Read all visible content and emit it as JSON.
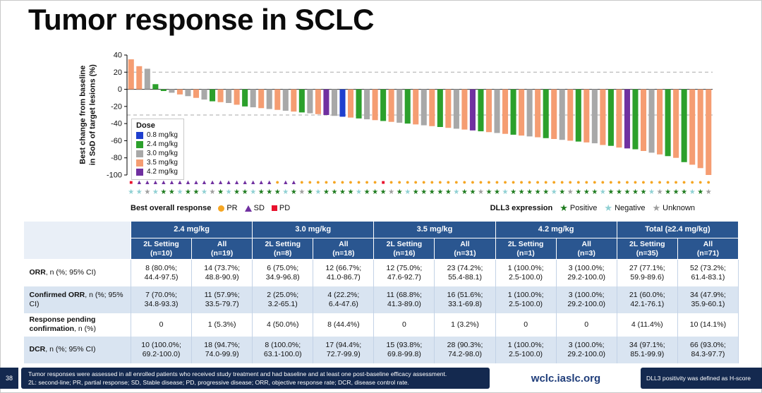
{
  "title": "Tumor response in SCLC",
  "colors": {
    "table_header_bg": "#2A5690",
    "table_stripe": "#D9E4F1",
    "footer_bg": "#14294F",
    "site_link": "#1F3D7A"
  },
  "chart_data": {
    "type": "bar",
    "subtype": "waterfall",
    "title": "",
    "ylabel": "Best change from baseline\nin SoD of target lesions (%)",
    "ylim": [
      -100,
      40
    ],
    "yticks": [
      40,
      20,
      0,
      -20,
      -40,
      -60,
      -80,
      -100
    ],
    "reference_lines": [
      20,
      -30
    ],
    "dose_legend_title": "Dose",
    "doses": [
      {
        "label": "0.8 mg/kg",
        "key": "0.8",
        "color": "#1F3FCE"
      },
      {
        "label": "2.4 mg/kg",
        "key": "2.4",
        "color": "#2CA02C"
      },
      {
        "label": "3.0 mg/kg",
        "key": "3.0",
        "color": "#A8A8A8"
      },
      {
        "label": "3.5 mg/kg",
        "key": "3.5",
        "color": "#F59D72"
      },
      {
        "label": "4.2 mg/kg",
        "key": "4.2",
        "color": "#7030A0"
      }
    ],
    "response_legend_title": "Best overall response",
    "responses": [
      {
        "label": "PR",
        "glyph": "circle",
        "color": "#F5A623"
      },
      {
        "label": "SD",
        "glyph": "triangle",
        "color": "#7030A0"
      },
      {
        "label": "PD",
        "glyph": "square",
        "color": "#E8112D"
      }
    ],
    "dll3_legend_title": "DLL3 expression",
    "dll3": [
      {
        "label": "Positive",
        "glyph": "star",
        "color": "#1E7B1E"
      },
      {
        "label": "Negative",
        "glyph": "star",
        "color": "#8FD0D3"
      },
      {
        "label": "Unknown",
        "glyph": "star",
        "color": "#9E9E9E"
      }
    ],
    "values": [
      35,
      27,
      24,
      6,
      -2,
      -4,
      -6,
      -8,
      -10,
      -12,
      -14,
      -15,
      -16,
      -18,
      -20,
      -21,
      -22,
      -23,
      -24,
      -25,
      -26,
      -27,
      -28,
      -29,
      -30,
      -31,
      -32,
      -33,
      -34,
      -35,
      -36,
      -37,
      -38,
      -39,
      -40,
      -41,
      -42,
      -43,
      -44,
      -45,
      -46,
      -47,
      -48,
      -49,
      -50,
      -51,
      -52,
      -53,
      -54,
      -55,
      -56,
      -57,
      -58,
      -59,
      -60,
      -61,
      -62,
      -63,
      -65,
      -66,
      -68,
      -69,
      -70,
      -72,
      -74,
      -76,
      -78,
      -80,
      -85,
      -88,
      -92,
      -100
    ],
    "dose_per_bar": [
      "3.5",
      "3.5",
      "3.0",
      "2.4",
      "2.4",
      "3.0",
      "3.5",
      "3.0",
      "3.5",
      "3.0",
      "2.4",
      "3.5",
      "3.0",
      "3.5",
      "2.4",
      "3.0",
      "3.5",
      "3.0",
      "3.5",
      "3.0",
      "3.5",
      "2.4",
      "3.0",
      "3.5",
      "4.2",
      "3.0",
      "0.8",
      "3.5",
      "2.4",
      "3.0",
      "3.5",
      "2.4",
      "3.5",
      "3.0",
      "2.4",
      "3.5",
      "3.0",
      "3.5",
      "2.4",
      "3.5",
      "3.0",
      "3.5",
      "4.2",
      "2.4",
      "3.5",
      "3.0",
      "3.5",
      "2.4",
      "3.5",
      "3.0",
      "3.5",
      "2.4",
      "3.5",
      "3.0",
      "3.5",
      "2.4",
      "3.5",
      "3.0",
      "3.5",
      "2.4",
      "3.5",
      "4.2",
      "2.4",
      "3.5",
      "3.0",
      "3.5",
      "2.4",
      "3.5",
      "2.4",
      "3.5",
      "3.5",
      "3.5"
    ],
    "response_per_bar": [
      "PD",
      "SD",
      "SD",
      "SD",
      "SD",
      "SD",
      "SD",
      "SD",
      "SD",
      "SD",
      "SD",
      "SD",
      "SD",
      "SD",
      "SD",
      "SD",
      "SD",
      "SD",
      "PR",
      "SD",
      "SD",
      "PR",
      "PR",
      "PR",
      "PR",
      "PR",
      "PR",
      "PR",
      "PR",
      "PR",
      "PR",
      "PD",
      "PR",
      "PR",
      "PR",
      "PR",
      "PR",
      "PR",
      "PR",
      "PR",
      "PR",
      "PR",
      "PR",
      "PR",
      "PR",
      "PR",
      "PR",
      "PR",
      "PR",
      "PR",
      "PR",
      "PR",
      "PR",
      "PR",
      "PR",
      "PR",
      "PR",
      "PR",
      "PR",
      "PR",
      "PR",
      "PR",
      "PR",
      "PR",
      "PR",
      "PR",
      "PR",
      "PR",
      "PR",
      "PR",
      "PR",
      "PR"
    ],
    "dll3_per_bar": [
      "Negative",
      "Negative",
      "Unknown",
      "Negative",
      "Positive",
      "Positive",
      "Negative",
      "Positive",
      "Positive",
      "Negative",
      "Unknown",
      "Positive",
      "Negative",
      "Positive",
      "Positive",
      "Negative",
      "Positive",
      "Positive",
      "Positive",
      "Negative",
      "Positive",
      "Unknown",
      "Positive",
      "Negative",
      "Positive",
      "Positive",
      "Positive",
      "Positive",
      "Negative",
      "Positive",
      "Positive",
      "Positive",
      "Unknown",
      "Positive",
      "Negative",
      "Positive",
      "Positive",
      "Positive",
      "Positive",
      "Positive",
      "Negative",
      "Positive",
      "Positive",
      "Unknown",
      "Positive",
      "Positive",
      "Negative",
      "Positive",
      "Positive",
      "Positive",
      "Positive",
      "Positive",
      "Negative",
      "Positive",
      "Unknown",
      "Positive",
      "Positive",
      "Positive",
      "Negative",
      "Positive",
      "Positive",
      "Positive",
      "Positive",
      "Positive",
      "Negative",
      "Unknown",
      "Positive",
      "Positive",
      "Positive",
      "Negative",
      "Positive",
      "Unknown"
    ]
  },
  "table": {
    "groups": [
      "2.4 mg/kg",
      "3.0 mg/kg",
      "3.5 mg/kg",
      "4.2 mg/kg",
      "Total (≥2.4 mg/kg)"
    ],
    "subheaders": [
      "2L Setting\n(n=10)",
      "All\n(n=19)",
      "2L Setting\n(n=8)",
      "All\n(n=18)",
      "2L Setting\n(n=16)",
      "All\n(n=31)",
      "2L Setting\n(n=1)",
      "All\n(n=3)",
      "2L Setting\n(n=35)",
      "All\n(n=71)"
    ],
    "rows": [
      {
        "label_bold": "ORR",
        "label_rest": ", n (%; 95% CI)",
        "short": false,
        "cells": [
          "8 (80.0%;\n44.4-97.5)",
          "14 (73.7%;\n48.8-90.9)",
          "6 (75.0%;\n34.9-96.8)",
          "12 (66.7%;\n41.0-86.7)",
          "12 (75.0%;\n47.6-92.7)",
          "23 (74.2%;\n55.4-88.1)",
          "1 (100.0%;\n2.5-100.0)",
          "3 (100.0%;\n29.2-100.0)",
          "27 (77.1%;\n59.9-89.6)",
          "52 (73.2%;\n61.4-83.1)"
        ]
      },
      {
        "label_bold": "Confirmed ORR",
        "label_rest": ", n (%; 95% CI)",
        "short": false,
        "cells": [
          "7 (70.0%;\n34.8-93.3)",
          "11 (57.9%;\n33.5-79.7)",
          "2 (25.0%;\n3.2-65.1)",
          "4 (22.2%;\n6.4-47.6)",
          "11 (68.8%;\n41.3-89.0)",
          "16 (51.6%;\n33.1-69.8)",
          "1 (100.0%;\n2.5-100.0)",
          "3 (100.0%;\n29.2-100.0)",
          "21 (60.0%;\n42.1-76.1)",
          "34 (47.9%;\n35.9-60.1)"
        ]
      },
      {
        "label_bold": "Response pending confirmation",
        "label_rest": ", n (%)",
        "short": true,
        "cells": [
          "0",
          "1 (5.3%)",
          "4 (50.0%)",
          "8 (44.4%)",
          "0",
          "1 (3.2%)",
          "0",
          "0",
          "4 (11.4%)",
          "10 (14.1%)"
        ]
      },
      {
        "label_bold": "DCR",
        "label_rest": ", n (%; 95% CI)",
        "short": false,
        "cells": [
          "10 (100.0%;\n69.2-100.0)",
          "18 (94.7%;\n74.0-99.9)",
          "8 (100.0%;\n63.1-100.0)",
          "17 (94.4%;\n72.7-99.9)",
          "15 (93.8%;\n69.8-99.8)",
          "28 (90.3%;\n74.2-98.0)",
          "1 (100.0%;\n2.5-100.0)",
          "3 (100.0%;\n29.2-100.0)",
          "34 (97.1%;\n85.1-99.9)",
          "66 (93.0%;\n84.3-97.7)"
        ]
      }
    ]
  },
  "footer": {
    "page_number": "38",
    "note_line1": "Tumor responses were assessed in all enrolled patients who received study treatment and had baseline and at least one post-baseline efficacy assessment.",
    "note_line2": "2L: second-line; PR, partial response; SD, Stable disease; PD, progressive disease; ORR, objective response rate; DCR, disease control rate.",
    "site": "wclc.iaslc.org",
    "right_note": "DLL3 positivity was defined as H-score"
  }
}
